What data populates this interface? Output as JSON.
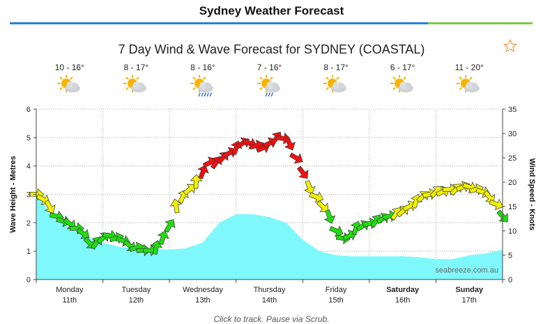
{
  "page": {
    "title": "Sydney Weather Forecast",
    "rule_colors": [
      "#2a7de1",
      "#7ac943"
    ]
  },
  "chart_header": {
    "title": "7 Day Wind & Wave Forecast for SYDNEY (COASTAL)",
    "favorite_icon": "star-outline-icon"
  },
  "days": [
    {
      "name": "Monday",
      "date": "11th",
      "temp": "10 - 16°",
      "icon": "sun-cloud-icon",
      "bold": false
    },
    {
      "name": "Tuesday",
      "date": "12th",
      "temp": "8 - 17°",
      "icon": "sun-cloud-icon",
      "bold": false
    },
    {
      "name": "Wednesday",
      "date": "13th",
      "temp": "8 - 16°",
      "icon": "sun-cloud-rain-icon",
      "bold": false
    },
    {
      "name": "Thursday",
      "date": "14th",
      "temp": "7 - 16°",
      "icon": "sun-cloud-shower-icon",
      "bold": false
    },
    {
      "name": "Friday",
      "date": "15th",
      "temp": "8 - 17°",
      "icon": "sun-cloud-icon",
      "bold": false
    },
    {
      "name": "Saturday",
      "date": "16th",
      "temp": "6 - 17°",
      "icon": "sun-cloud-icon",
      "bold": true
    },
    {
      "name": "Sunday",
      "date": "17th",
      "temp": "11 - 20°",
      "icon": "sun-cloud-icon",
      "bold": true
    }
  ],
  "chart_data": {
    "type": "area",
    "xlabel": "",
    "ylabel_left": "Wave Height - Metres",
    "ylabel_right": "Wind Speed - Knots",
    "ylim_left": [
      0,
      6
    ],
    "ylim_right": [
      0,
      35
    ],
    "yticks_left": [
      0,
      1,
      2,
      3,
      4,
      5,
      6
    ],
    "yticks_right": [
      0,
      5,
      10,
      15,
      20,
      25,
      30,
      35
    ],
    "x_range_days": [
      0,
      7
    ],
    "grid": true,
    "watermark": "seabreeze.com.au",
    "wave_series": {
      "name": "Wave Height",
      "color": "#7ff8fb",
      "points": [
        [
          0,
          3.05
        ],
        [
          0.25,
          2.2
        ],
        [
          0.5,
          1.8
        ],
        [
          0.75,
          1.5
        ],
        [
          1,
          1.3
        ],
        [
          1.25,
          1.15
        ],
        [
          1.5,
          1.1
        ],
        [
          1.75,
          1.08
        ],
        [
          2,
          1.05
        ],
        [
          2.25,
          1.1
        ],
        [
          2.5,
          1.3
        ],
        [
          2.75,
          2.0
        ],
        [
          3,
          2.3
        ],
        [
          3.25,
          2.3
        ],
        [
          3.5,
          2.2
        ],
        [
          3.75,
          2.0
        ],
        [
          4,
          1.4
        ],
        [
          4.25,
          1.0
        ],
        [
          4.5,
          0.85
        ],
        [
          4.75,
          0.82
        ],
        [
          5,
          0.82
        ],
        [
          5.25,
          0.82
        ],
        [
          5.5,
          0.82
        ],
        [
          5.75,
          0.78
        ],
        [
          6,
          0.72
        ],
        [
          6.25,
          0.72
        ],
        [
          6.5,
          0.85
        ],
        [
          6.75,
          0.92
        ],
        [
          7,
          1.05
        ]
      ]
    },
    "wind_series": {
      "name": "Wind Speed",
      "color_scale": [
        {
          "max": 13,
          "color": "#22dd11"
        },
        {
          "max": 20,
          "color": "#f2f200"
        },
        {
          "max": 99,
          "color": "#ee1111"
        }
      ],
      "points": [
        [
          0,
          17.5
        ],
        [
          0.1,
          16.5
        ],
        [
          0.2,
          15
        ],
        [
          0.3,
          13
        ],
        [
          0.4,
          12
        ],
        [
          0.5,
          11.5
        ],
        [
          0.6,
          10.5
        ],
        [
          0.7,
          9.5
        ],
        [
          0.8,
          7.5
        ],
        [
          0.9,
          7.5
        ],
        [
          1,
          8.5
        ],
        [
          1.1,
          9
        ],
        [
          1.2,
          8.5
        ],
        [
          1.3,
          8
        ],
        [
          1.4,
          7
        ],
        [
          1.5,
          6.5
        ],
        [
          1.6,
          6
        ],
        [
          1.7,
          6
        ],
        [
          1.8,
          6.5
        ],
        [
          1.9,
          8.5
        ],
        [
          2,
          11
        ],
        [
          2.1,
          15
        ],
        [
          2.2,
          17
        ],
        [
          2.3,
          18.5
        ],
        [
          2.4,
          20
        ],
        [
          2.5,
          22
        ],
        [
          2.6,
          24
        ],
        [
          2.7,
          24
        ],
        [
          2.8,
          25
        ],
        [
          2.9,
          26
        ],
        [
          3,
          27
        ],
        [
          3.1,
          28
        ],
        [
          3.2,
          28
        ],
        [
          3.3,
          27.5
        ],
        [
          3.4,
          27
        ],
        [
          3.5,
          28
        ],
        [
          3.6,
          29
        ],
        [
          3.7,
          29
        ],
        [
          3.8,
          28
        ],
        [
          3.9,
          25
        ],
        [
          4,
          22
        ],
        [
          4.1,
          19
        ],
        [
          4.2,
          17
        ],
        [
          4.3,
          15
        ],
        [
          4.4,
          13
        ],
        [
          4.5,
          10
        ],
        [
          4.6,
          8.5
        ],
        [
          4.7,
          9
        ],
        [
          4.8,
          10.5
        ],
        [
          4.9,
          11
        ],
        [
          5,
          11.5
        ],
        [
          5.1,
          12
        ],
        [
          5.2,
          12.5
        ],
        [
          5.3,
          13
        ],
        [
          5.4,
          13.5
        ],
        [
          5.5,
          14
        ],
        [
          5.6,
          15
        ],
        [
          5.7,
          16
        ],
        [
          5.8,
          17
        ],
        [
          5.9,
          17.5
        ],
        [
          6,
          18
        ],
        [
          6.1,
          18
        ],
        [
          6.2,
          18.5
        ],
        [
          6.3,
          18.5
        ],
        [
          6.4,
          19
        ],
        [
          6.5,
          19
        ],
        [
          6.6,
          18.5
        ],
        [
          6.7,
          18
        ],
        [
          6.8,
          17
        ],
        [
          6.9,
          15.5
        ],
        [
          7,
          13
        ]
      ]
    }
  },
  "footer": {
    "text": "Click to track. Pause via Scrub."
  }
}
